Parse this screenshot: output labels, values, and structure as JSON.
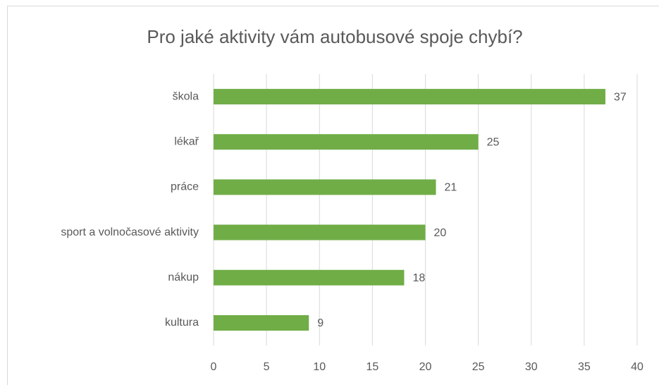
{
  "chart_data": {
    "type": "bar",
    "orientation": "horizontal",
    "title": "Pro jaké aktivity vám autobusové spoje chybí?",
    "categories": [
      "škola",
      "lékař",
      "práce",
      "sport a volnočasové aktivity",
      "nákup",
      "kultura"
    ],
    "values": [
      37,
      25,
      21,
      20,
      18,
      9
    ],
    "color": "#70ad47",
    "xlim": [
      0,
      40
    ],
    "xticks": [
      0,
      5,
      10,
      15,
      20,
      25,
      30,
      35,
      40
    ],
    "grid": true
  }
}
